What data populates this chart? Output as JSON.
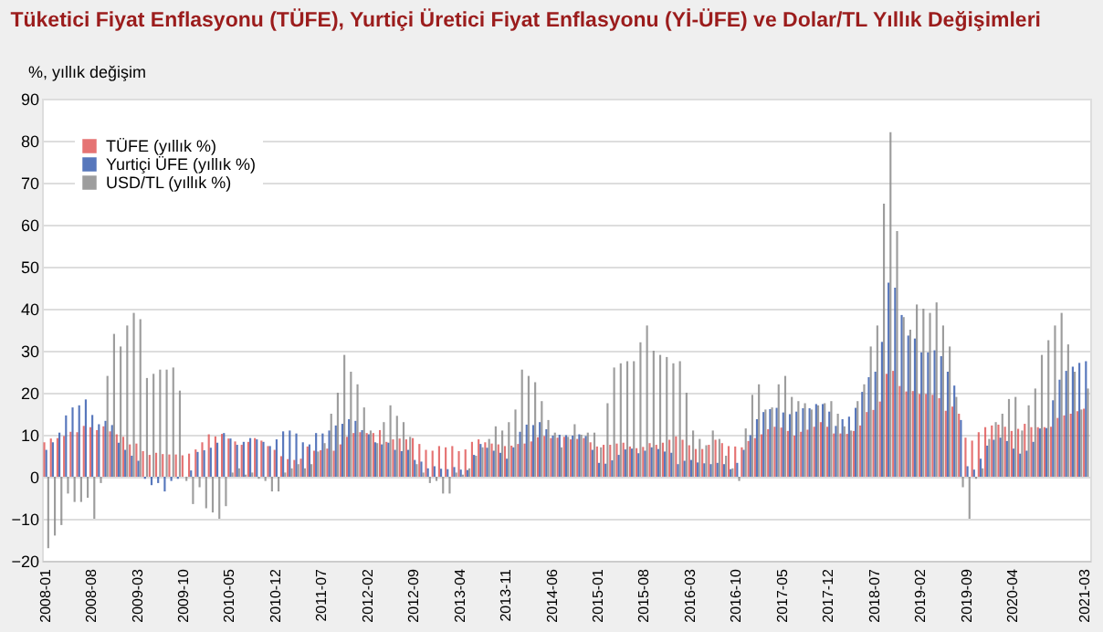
{
  "chart_data": {
    "type": "bar",
    "title": "Tüketici Fiyat Enflasyonu (TÜFE), Yurtiçi Üretici Fiyat Enflasyonu (Yİ-ÜFE) ve Dolar/TL Yıllık Değişimleri",
    "ylabel": "%, yıllık değişim",
    "categories": [
      "2008-01",
      null,
      null,
      null,
      null,
      null,
      null,
      "2008-08",
      null,
      null,
      null,
      null,
      null,
      null,
      "2009-03",
      null,
      null,
      null,
      null,
      null,
      null,
      "2009-10",
      null,
      null,
      null,
      null,
      null,
      null,
      "2010-05",
      null,
      null,
      null,
      null,
      null,
      null,
      "2010-12",
      null,
      null,
      null,
      null,
      null,
      null,
      "2011-07",
      null,
      null,
      null,
      null,
      null,
      null,
      "2012-02",
      null,
      null,
      null,
      null,
      null,
      null,
      "2012-09",
      null,
      null,
      null,
      null,
      null,
      null,
      "2013-04",
      null,
      null,
      null,
      null,
      null,
      null,
      "2013-11",
      null,
      null,
      null,
      null,
      null,
      null,
      "2014-06",
      null,
      null,
      null,
      null,
      null,
      null,
      "2015-01",
      null,
      null,
      null,
      null,
      null,
      null,
      "2015-08",
      null,
      null,
      null,
      null,
      null,
      null,
      "2016-03",
      null,
      null,
      null,
      null,
      null,
      null,
      "2016-10",
      null,
      null,
      null,
      null,
      null,
      null,
      "2017-05",
      null,
      null,
      null,
      null,
      null,
      null,
      "2017-12",
      null,
      null,
      null,
      null,
      null,
      null,
      "2018-07",
      null,
      null,
      null,
      null,
      null,
      null,
      "2019-02",
      null,
      null,
      null,
      null,
      null,
      null,
      "2019-09",
      null,
      null,
      null,
      null,
      null,
      null,
      "2020-04",
      null,
      null,
      null,
      null,
      null,
      null,
      null,
      null,
      null,
      null,
      "2021-03"
    ],
    "series": [
      {
        "name": "TÜFE (yıllık %)",
        "color": "#e05a5a",
        "values": [
          8.2,
          9.1,
          9.2,
          9.7,
          10.7,
          10.6,
          12.1,
          11.8,
          11.1,
          12,
          10.8,
          10.1,
          9.5,
          7.7,
          7.9,
          6.1,
          5.2,
          5.7,
          5.4,
          5.3,
          5.3,
          5.1,
          5.5,
          6.5,
          8.2,
          10.1,
          9.6,
          10.2,
          9.1,
          8.4,
          7.6,
          8.3,
          9.2,
          8.6,
          7.3,
          6.4,
          4.9,
          4.2,
          4,
          4.3,
          7.2,
          6.2,
          6.3,
          6.7,
          6.2,
          7.7,
          9.5,
          10.4,
          10.6,
          10.4,
          10.4,
          11.1,
          8.3,
          8.9,
          9.1,
          8.9,
          9.2,
          7.8,
          6.4,
          6.2,
          7.3,
          7,
          7.3,
          6.1,
          6.5,
          8.3,
          8.9,
          8.2,
          7.9,
          7.7,
          7.3,
          7.4,
          7.8,
          7.9,
          8.4,
          9.4,
          9.7,
          9.2,
          9.3,
          9.5,
          8.9,
          9,
          9.2,
          8.2,
          7.2,
          7.6,
          7.6,
          7.9,
          8.1,
          7.2,
          6.8,
          7.1,
          8,
          7.6,
          8.1,
          8.8,
          9.6,
          8.8,
          7.5,
          6.6,
          6.6,
          7.6,
          8.8,
          8,
          7.3,
          7.2,
          7,
          8.5,
          9.2,
          10.1,
          11.3,
          11.9,
          11.7,
          10.9,
          9.8,
          10.7,
          11.2,
          11.9,
          13,
          11.9,
          10.3,
          10.3,
          10.2,
          10.9,
          12.2,
          15.4,
          15.9,
          17.9,
          24.5,
          25.2,
          21.6,
          20.3,
          20.4,
          19.7,
          19.7,
          19.5,
          18.7,
          15.7,
          16.7,
          15,
          9.3,
          8.6,
          10.6,
          11.8,
          12.2,
          12.4,
          11.9,
          10.9,
          11.4,
          12.6,
          11.8,
          11.8,
          11.8,
          11.9,
          14,
          14.6,
          15,
          15.6,
          16.2
        ]
      },
      {
        "name": "Yurtiçi ÜFE (yıllık %)",
        "color": "#3a5fb0",
        "values": [
          6.4,
          8.2,
          10.5,
          14.6,
          16.5,
          17,
          18.4,
          14.7,
          12.5,
          13.3,
          12.3,
          8.1,
          6.4,
          5,
          3.8,
          -0.5,
          -2,
          -1.5,
          -3.5,
          -1,
          -0.5,
          0,
          1.5,
          5.9,
          6.3,
          6.9,
          8.1,
          10.4,
          9.1,
          7.6,
          8.3,
          9.2,
          8.9,
          8.3,
          7.3,
          8.9,
          10.8,
          11,
          10.3,
          8.2,
          7.7,
          10.4,
          10.3,
          11,
          12.2,
          12.6,
          13.7,
          13.3,
          11.1,
          10.1,
          8.2,
          7.7,
          8.1,
          6.4,
          6.1,
          6.4,
          4,
          3.6,
          2,
          2.5,
          1.9,
          1.8,
          2.3,
          1.7,
          1.6,
          5.2,
          7.8,
          6.9,
          6.2,
          5.7,
          4.3,
          7,
          10.7,
          12.4,
          12.3,
          13,
          11.3,
          9.8,
          10,
          9.9,
          9.8,
          10.1,
          9.7,
          6.4,
          3.3,
          3.1,
          3.9,
          5.2,
          6.5,
          6.7,
          5.6,
          6.2,
          7,
          6.6,
          6,
          5.7,
          3,
          3.8,
          4,
          3.4,
          3.2,
          3,
          3.3,
          3,
          1.8,
          3.3,
          6.4,
          9.9,
          13.7,
          15.4,
          16.1,
          16.4,
          15.3,
          14.9,
          15.5,
          16.3,
          16.3,
          17.3,
          17.3,
          15.5,
          12.1,
          13.7,
          14.3,
          16.4,
          20.2,
          23.7,
          25,
          32.1,
          46.2,
          45,
          38.5,
          33.6,
          32.9,
          29.6,
          29.6,
          30.1,
          28.7,
          25,
          21.7,
          13.5,
          2.5,
          1.7,
          4.3,
          7.4,
          8.8,
          9.3,
          8.5,
          6.7,
          5.5,
          6.2,
          8.3,
          11.5,
          11.6,
          18.2,
          23.1,
          25.2,
          26.2,
          27.1,
          27.5
        ]
      },
      {
        "name": "USD/TL (yıllık %)",
        "color": "#8c8c8c",
        "values": [
          -17,
          -14,
          -11.5,
          -4,
          -6,
          -6,
          -5,
          -10,
          -1.5,
          24,
          34,
          31,
          36,
          39,
          37.5,
          23.5,
          24.5,
          25.5,
          25.5,
          26,
          20.5,
          -1,
          -6.5,
          -2.5,
          -7.5,
          -8.5,
          -10,
          -7,
          1,
          2,
          0.5,
          1,
          -0.5,
          -1,
          -3.5,
          -3.5,
          1,
          2,
          3,
          2,
          3,
          6,
          8,
          15,
          20,
          29,
          25,
          22,
          16.5,
          11,
          8,
          13,
          17,
          14.5,
          13,
          9.5,
          3,
          1,
          -1.5,
          -1,
          -4,
          -4,
          1,
          0.5,
          2,
          5,
          7,
          9,
          12,
          11,
          13,
          16,
          25.5,
          24,
          22.5,
          18,
          13.5,
          10.5,
          7,
          9.5,
          12.5,
          10,
          10.5,
          10.5,
          7,
          17.5,
          26,
          27,
          27.5,
          27.5,
          32,
          36,
          30,
          29,
          28.5,
          27,
          27.5,
          20,
          11,
          9,
          7.5,
          11,
          9,
          5,
          2,
          -1,
          11.5,
          19.5,
          22,
          16,
          16.5,
          22,
          24,
          19,
          18,
          17.5,
          16,
          17,
          17.5,
          18,
          15,
          12,
          11,
          18,
          22,
          31,
          36,
          65,
          82,
          58.5,
          38,
          35,
          41,
          40,
          39,
          41.5,
          36,
          31,
          19,
          -2.5,
          -10,
          -0.5,
          2,
          9,
          13,
          15,
          18.5,
          19,
          11,
          17,
          21,
          29,
          32.5,
          36,
          39,
          31.5,
          25,
          16,
          21
        ]
      }
    ],
    "ylim": [
      -20,
      90
    ],
    "yticks": [
      -20,
      -10,
      0,
      10,
      20,
      30,
      40,
      50,
      60,
      70,
      80,
      90
    ],
    "grid": "y",
    "legend": "top left"
  }
}
